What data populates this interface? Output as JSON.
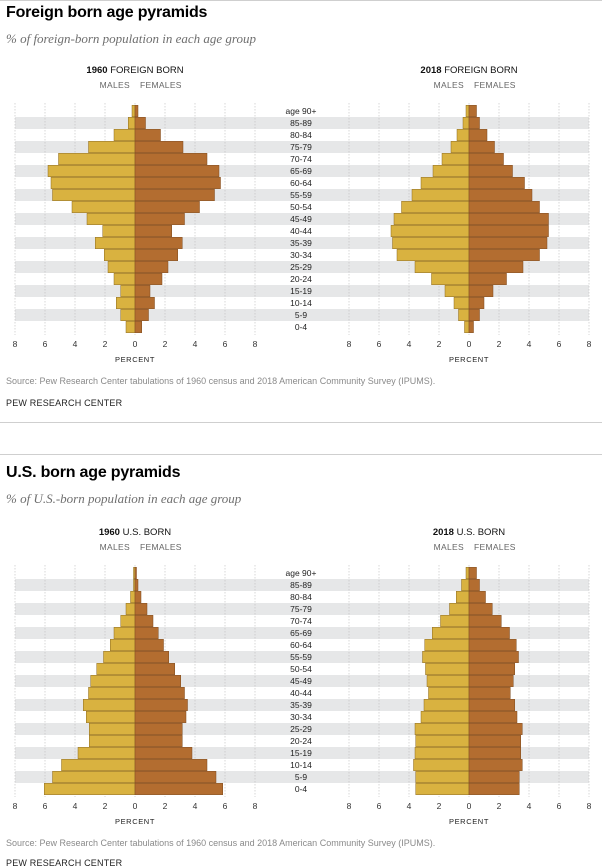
{
  "colors": {
    "males": "#D9B240",
    "females": "#B36D30",
    "stripe": "#E6E7E8",
    "grid": "#BDBDBD",
    "bar_stroke": "#8C6A22"
  },
  "age_groups": [
    "age 90+",
    "85-89",
    "80-84",
    "75-79",
    "70-74",
    "65-69",
    "60-64",
    "55-59",
    "50-54",
    "45-49",
    "40-44",
    "35-39",
    "30-34",
    "25-29",
    "20-24",
    "15-19",
    "10-14",
    "5-9",
    "0-4"
  ],
  "sections": [
    {
      "title": "Foreign born age pyramids",
      "subtitle": "% of foreign-born population in each age group",
      "source": "Source: Pew Research Center tabulations of 1960 census and 2018 American Community Survey (IPUMS).",
      "credit": "PEW RESEARCH CENTER"
    },
    {
      "title": "U.S. born age pyramids",
      "subtitle": "% of U.S.-born population in each age group",
      "source": "Source: Pew Research Center tabulations of 1960 census and 2018 American Community Survey (IPUMS).",
      "credit": "PEW RESEARCH CENTER"
    }
  ],
  "chart_data": [
    {
      "type": "bar",
      "orientation": "horizontal-pyramid",
      "title_year": "1960",
      "title_rest": "FOREIGN BORN",
      "legend": [
        "MALES",
        "FEMALES"
      ],
      "xlabel": "PERCENT",
      "xticks": [
        "8",
        "6",
        "4",
        "2",
        "0",
        "2",
        "4",
        "6",
        "8"
      ],
      "xlim": [
        -8,
        8
      ],
      "grid": true,
      "categories": [
        "age 90+",
        "85-89",
        "80-84",
        "75-79",
        "70-74",
        "65-69",
        "60-64",
        "55-59",
        "50-54",
        "45-49",
        "40-44",
        "35-39",
        "30-34",
        "25-29",
        "20-24",
        "15-19",
        "10-14",
        "5-9",
        "0-4"
      ],
      "series": [
        {
          "name": "Males",
          "values": [
            0.2,
            0.45,
            1.4,
            3.1,
            5.1,
            5.8,
            5.6,
            5.5,
            4.2,
            3.2,
            2.15,
            2.65,
            2.05,
            1.8,
            1.4,
            0.95,
            1.25,
            0.95,
            0.6
          ]
        },
        {
          "name": "Females",
          "values": [
            0.2,
            0.7,
            1.7,
            3.2,
            4.8,
            5.6,
            5.7,
            5.3,
            4.3,
            3.3,
            2.45,
            3.15,
            2.85,
            2.2,
            1.8,
            1.0,
            1.3,
            0.9,
            0.45
          ]
        }
      ]
    },
    {
      "type": "bar",
      "orientation": "horizontal-pyramid",
      "title_year": "2018",
      "title_rest": "FOREIGN BORN",
      "legend": [
        "MALES",
        "FEMALES"
      ],
      "xlabel": "PERCENT",
      "xticks": [
        "8",
        "6",
        "4",
        "2",
        "0",
        "2",
        "4",
        "6",
        "8"
      ],
      "xlim": [
        -8,
        8
      ],
      "grid": true,
      "categories": [
        "age 90+",
        "85-89",
        "80-84",
        "75-79",
        "70-74",
        "65-69",
        "60-64",
        "55-59",
        "50-54",
        "45-49",
        "40-44",
        "35-39",
        "30-34",
        "25-29",
        "20-24",
        "15-19",
        "10-14",
        "5-9",
        "0-4"
      ],
      "series": [
        {
          "name": "Males",
          "values": [
            0.2,
            0.4,
            0.8,
            1.2,
            1.8,
            2.4,
            3.2,
            3.8,
            4.5,
            5.0,
            5.2,
            5.1,
            4.8,
            3.6,
            2.5,
            1.6,
            1.0,
            0.7,
            0.3
          ]
        },
        {
          "name": "Females",
          "values": [
            0.5,
            0.7,
            1.2,
            1.7,
            2.3,
            2.9,
            3.7,
            4.2,
            4.7,
            5.3,
            5.3,
            5.2,
            4.7,
            3.6,
            2.5,
            1.6,
            1.0,
            0.7,
            0.3
          ]
        }
      ]
    },
    {
      "type": "bar",
      "orientation": "horizontal-pyramid",
      "title_year": "1960",
      "title_rest": "U.S. BORN",
      "legend": [
        "MALES",
        "FEMALES"
      ],
      "xlabel": "PERCENT",
      "xticks": [
        "8",
        "6",
        "4",
        "2",
        "0",
        "2",
        "4",
        "6",
        "8"
      ],
      "xlim": [
        -8,
        8
      ],
      "grid": true,
      "categories": [
        "age 90+",
        "85-89",
        "80-84",
        "75-79",
        "70-74",
        "65-69",
        "60-64",
        "55-59",
        "50-54",
        "45-49",
        "40-44",
        "35-39",
        "30-34",
        "25-29",
        "20-24",
        "15-19",
        "10-14",
        "5-9",
        "0-4"
      ],
      "series": [
        {
          "name": "Males",
          "values": [
            0.1,
            0.1,
            0.3,
            0.6,
            0.95,
            1.4,
            1.65,
            2.1,
            2.55,
            2.95,
            3.1,
            3.45,
            3.25,
            3.05,
            3.05,
            3.8,
            4.9,
            5.5,
            6.05
          ]
        },
        {
          "name": "Females",
          "values": [
            0.1,
            0.2,
            0.4,
            0.8,
            1.2,
            1.55,
            1.9,
            2.25,
            2.65,
            3.05,
            3.3,
            3.5,
            3.4,
            3.15,
            3.15,
            3.8,
            4.8,
            5.4,
            5.85
          ]
        }
      ]
    },
    {
      "type": "bar",
      "orientation": "horizontal-pyramid",
      "title_year": "2018",
      "title_rest": "U.S. BORN",
      "legend": [
        "MALES",
        "FEMALES"
      ],
      "xlabel": "PERCENT",
      "xticks": [
        "8",
        "6",
        "4",
        "2",
        "0",
        "2",
        "4",
        "6",
        "8"
      ],
      "xlim": [
        -8,
        8
      ],
      "grid": true,
      "categories": [
        "age 90+",
        "85-89",
        "80-84",
        "75-79",
        "70-74",
        "65-69",
        "60-64",
        "55-59",
        "50-54",
        "45-49",
        "40-44",
        "35-39",
        "30-34",
        "25-29",
        "20-24",
        "15-19",
        "10-14",
        "5-9",
        "0-4"
      ],
      "series": [
        {
          "name": "Males",
          "values": [
            0.2,
            0.5,
            0.85,
            1.3,
            1.9,
            2.45,
            2.95,
            3.1,
            2.9,
            2.8,
            2.7,
            3.0,
            3.2,
            3.6,
            3.55,
            3.6,
            3.7,
            3.55,
            3.55
          ]
        },
        {
          "name": "Females",
          "values": [
            0.5,
            0.7,
            1.1,
            1.55,
            2.15,
            2.7,
            3.15,
            3.3,
            3.05,
            2.95,
            2.75,
            3.05,
            3.2,
            3.55,
            3.45,
            3.45,
            3.55,
            3.35,
            3.35
          ]
        }
      ]
    }
  ]
}
